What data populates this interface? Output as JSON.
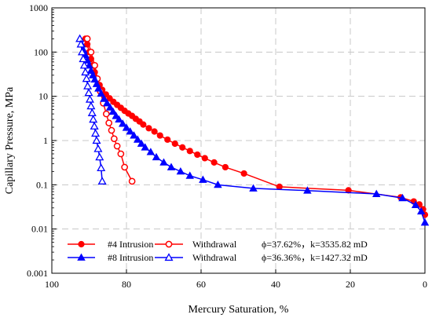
{
  "chart_data": {
    "type": "line",
    "xlabel": "Mercury Saturation, %",
    "ylabel": "Capillary Pressure, MPa",
    "xlim": [
      100,
      0
    ],
    "ylim": [
      0.001,
      1000
    ],
    "x_scale": "linear",
    "y_scale": "log",
    "x_ticks": [
      100,
      80,
      60,
      40,
      20,
      0
    ],
    "y_ticks": [
      0.001,
      0.01,
      0.1,
      1,
      10,
      100,
      1000
    ],
    "x_tick_labels": [
      "100",
      "80",
      "60",
      "40",
      "20",
      "0"
    ],
    "y_tick_labels": [
      "0.001",
      "0.01",
      "0.1",
      "1",
      "10",
      "100",
      "1000"
    ],
    "grid": true,
    "legend_position": "bottom-center",
    "series": [
      {
        "name": "#4 Intrusion",
        "color": "#ff0000",
        "marker": "circle-filled",
        "x": [
          91,
          90.5,
          90,
          89.5,
          89,
          88.5,
          88,
          87.2,
          86.5,
          85.5,
          84.5,
          83.5,
          82.5,
          81.5,
          80.5,
          79.5,
          78.5,
          77.5,
          76.5,
          75.5,
          74,
          72.5,
          71,
          69,
          67,
          65,
          63,
          61,
          59,
          56.5,
          53.5,
          48.5,
          39,
          20.5,
          6.5,
          3,
          1.5,
          0.5,
          0
        ],
        "y": [
          200,
          150,
          100,
          70,
          50,
          35,
          25,
          18,
          14,
          11,
          9,
          7.5,
          6.4,
          5.5,
          4.7,
          4.1,
          3.6,
          3.1,
          2.7,
          2.3,
          1.9,
          1.6,
          1.3,
          1.05,
          0.85,
          0.7,
          0.58,
          0.48,
          0.4,
          0.32,
          0.25,
          0.18,
          0.09,
          0.075,
          0.052,
          0.042,
          0.036,
          0.028,
          0.021
        ]
      },
      {
        "name": "Withdrawal",
        "color": "#ff0000",
        "marker": "circle-open",
        "x": [
          90.5,
          89.5,
          88.5,
          87.8,
          87,
          86.2,
          85.4,
          84.7,
          84,
          83.3,
          82.5,
          81.5,
          80.5,
          78.5
        ],
        "y": [
          200,
          100,
          50,
          25,
          13,
          7,
          4,
          2.5,
          1.7,
          1.1,
          0.75,
          0.5,
          0.25,
          0.12
        ]
      },
      {
        "name": "#8 Intrusion",
        "color": "#0000ff",
        "marker": "triangle-filled",
        "x": [
          92.5,
          92,
          91.5,
          91,
          90.5,
          90,
          89.5,
          89,
          88.5,
          88,
          87.5,
          86.8,
          86,
          85.2,
          84.4,
          83.6,
          82.8,
          82,
          81,
          80,
          79,
          78,
          77,
          76,
          75,
          73.5,
          72,
          70,
          68,
          65.5,
          63,
          59.5,
          55.5,
          46,
          31.5,
          13,
          6,
          2.5,
          1,
          0
        ],
        "y": [
          200,
          150,
          110,
          85,
          65,
          50,
          38,
          30,
          24,
          19,
          15,
          11.5,
          8.8,
          7,
          5.6,
          4.5,
          3.6,
          3,
          2.4,
          1.95,
          1.6,
          1.3,
          1.05,
          0.85,
          0.7,
          0.55,
          0.42,
          0.32,
          0.25,
          0.2,
          0.16,
          0.13,
          0.1,
          0.083,
          0.074,
          0.062,
          0.05,
          0.035,
          0.025,
          0.014
        ]
      },
      {
        "name": "Withdrawal",
        "color": "#0000ff",
        "marker": "triangle-open",
        "x": [
          92.5,
          92.2,
          91.9,
          91.6,
          91.3,
          91,
          90.7,
          90.4,
          90.1,
          89.8,
          89.5,
          89.2,
          88.9,
          88.6,
          88.3,
          88,
          87.6,
          87.2,
          86.8,
          86.5
        ],
        "y": [
          200,
          150,
          100,
          70,
          50,
          35,
          25,
          17,
          12,
          8.5,
          6,
          4.2,
          3,
          2.1,
          1.45,
          1,
          0.65,
          0.42,
          0.24,
          0.12
        ]
      }
    ],
    "legend": {
      "entries": [
        "#4 Intrusion",
        "Withdrawal",
        "#8 Intrusion",
        "Withdrawal"
      ],
      "notes": [
        "ϕ=37.62%，k=3535.82 mD",
        "ϕ=36.36%，k=1427.32 mD"
      ]
    }
  }
}
